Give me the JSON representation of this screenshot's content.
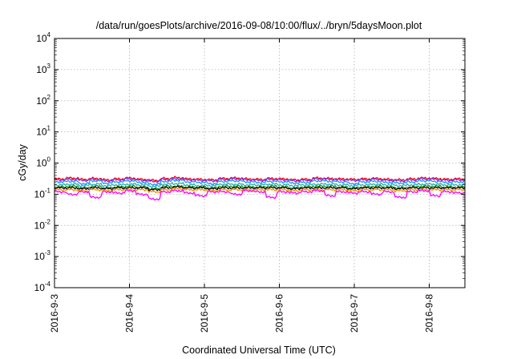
{
  "chart_data": {
    "type": "line",
    "title": "/data/run/goesPlots/archive/2016-09-08/10:00/flux/../bryn/5daysMoon.plot",
    "xlabel": "Coordinated Universal Time (UTC)",
    "ylabel": "cGy/day",
    "yscale": "log",
    "ylim": [
      0.0001,
      10000
    ],
    "y_ticks": [
      {
        "base": "10",
        "exp": "-4"
      },
      {
        "base": "10",
        "exp": "-3"
      },
      {
        "base": "10",
        "exp": "-2"
      },
      {
        "base": "10",
        "exp": "-1"
      },
      {
        "base": "10",
        "exp": "0"
      },
      {
        "base": "10",
        "exp": "1"
      },
      {
        "base": "10",
        "exp": "2"
      },
      {
        "base": "10",
        "exp": "3"
      },
      {
        "base": "10",
        "exp": "4"
      }
    ],
    "xlim": [
      "2016-09-03",
      "2016-09-08 10:00"
    ],
    "x_ticks": [
      "2016-9-3",
      "2016-9-4",
      "2016-9-5",
      "2016-9-6",
      "2016-9-7",
      "2016-9-8"
    ],
    "grid": true,
    "legend": "none",
    "series": [
      {
        "color": "#ff0000",
        "base": 0.31,
        "values": [
          0.31,
          0.33,
          0.3,
          0.32,
          0.29,
          0.31,
          0.33,
          0.3,
          0.28,
          0.32,
          0.34,
          0.31,
          0.3,
          0.29,
          0.32,
          0.33,
          0.31,
          0.3,
          0.32,
          0.31,
          0.29,
          0.3,
          0.33,
          0.32,
          0.31,
          0.3,
          0.31,
          0.32,
          0.3,
          0.29,
          0.31,
          0.33,
          0.32,
          0.3,
          0.31,
          0.32
        ]
      },
      {
        "color": "#8a2be2",
        "base": 0.29,
        "values": [
          0.29,
          0.3,
          0.28,
          0.3,
          0.27,
          0.29,
          0.31,
          0.28,
          0.26,
          0.3,
          0.31,
          0.29,
          0.28,
          0.27,
          0.3,
          0.31,
          0.29,
          0.28,
          0.3,
          0.29,
          0.27,
          0.28,
          0.31,
          0.3,
          0.29,
          0.28,
          0.29,
          0.3,
          0.28,
          0.27,
          0.29,
          0.31,
          0.3,
          0.28,
          0.29,
          0.3
        ]
      },
      {
        "color": "#1e90ff",
        "base": 0.25,
        "values": [
          0.25,
          0.26,
          0.22,
          0.27,
          0.23,
          0.25,
          0.27,
          0.24,
          0.21,
          0.26,
          0.28,
          0.25,
          0.24,
          0.22,
          0.26,
          0.27,
          0.25,
          0.24,
          0.26,
          0.25,
          0.23,
          0.24,
          0.27,
          0.26,
          0.25,
          0.22,
          0.25,
          0.26,
          0.24,
          0.23,
          0.25,
          0.27,
          0.26,
          0.24,
          0.25,
          0.26
        ]
      },
      {
        "color": "#20b2aa",
        "base": 0.2,
        "values": [
          0.2,
          0.21,
          0.19,
          0.21,
          0.19,
          0.2,
          0.21,
          0.2,
          0.18,
          0.21,
          0.22,
          0.2,
          0.19,
          0.19,
          0.21,
          0.21,
          0.2,
          0.2,
          0.21,
          0.2,
          0.19,
          0.2,
          0.21,
          0.21,
          0.2,
          0.19,
          0.2,
          0.21,
          0.2,
          0.19,
          0.2,
          0.21,
          0.21,
          0.2,
          0.2,
          0.21
        ]
      },
      {
        "color": "#228b22",
        "base": 0.17,
        "values": [
          0.17,
          0.18,
          0.16,
          0.18,
          0.16,
          0.17,
          0.18,
          0.17,
          0.15,
          0.18,
          0.18,
          0.17,
          0.17,
          0.16,
          0.18,
          0.18,
          0.17,
          0.17,
          0.18,
          0.17,
          0.16,
          0.17,
          0.18,
          0.18,
          0.17,
          0.16,
          0.17,
          0.18,
          0.17,
          0.16,
          0.17,
          0.18,
          0.18,
          0.17,
          0.17,
          0.18
        ]
      },
      {
        "color": "#000000",
        "base": 0.16,
        "values": [
          0.16,
          0.16,
          0.15,
          0.16,
          0.15,
          0.16,
          0.16,
          0.16,
          0.14,
          0.16,
          0.17,
          0.16,
          0.16,
          0.15,
          0.16,
          0.16,
          0.16,
          0.16,
          0.16,
          0.16,
          0.15,
          0.16,
          0.16,
          0.16,
          0.16,
          0.15,
          0.16,
          0.16,
          0.16,
          0.15,
          0.16,
          0.16,
          0.16,
          0.16,
          0.16,
          0.16
        ]
      },
      {
        "color": "#ff8c00",
        "base": 0.14,
        "values": [
          0.14,
          0.14,
          0.13,
          0.14,
          0.13,
          0.14,
          0.14,
          0.14,
          0.12,
          0.14,
          0.15,
          0.14,
          0.14,
          0.13,
          0.14,
          0.14,
          0.14,
          0.14,
          0.14,
          0.14,
          0.13,
          0.14,
          0.14,
          0.14,
          0.14,
          0.13,
          0.14,
          0.14,
          0.14,
          0.13,
          0.14,
          0.14,
          0.14,
          0.14,
          0.14,
          0.14
        ]
      },
      {
        "color": "#ff00ff",
        "base": 0.12,
        "values": [
          0.12,
          0.1,
          0.12,
          0.08,
          0.12,
          0.11,
          0.13,
          0.1,
          0.07,
          0.12,
          0.13,
          0.11,
          0.09,
          0.12,
          0.12,
          0.1,
          0.13,
          0.12,
          0.08,
          0.12,
          0.11,
          0.12,
          0.13,
          0.09,
          0.12,
          0.11,
          0.12,
          0.1,
          0.12,
          0.08,
          0.12,
          0.13,
          0.09,
          0.12,
          0.11,
          0.12
        ]
      }
    ]
  }
}
